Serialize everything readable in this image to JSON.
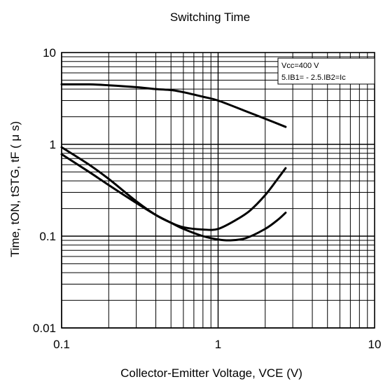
{
  "chart_data": {
    "type": "line",
    "title": "Switching Time",
    "xlabel": "Collector-Emitter Voltage, VCE (V)",
    "ylabel": "Time, tON, tSTG, tF ( μ s)",
    "x_scale": "log",
    "y_scale": "log",
    "xlim": [
      0.1,
      10
    ],
    "ylim": [
      0.01,
      10
    ],
    "x_ticks": [
      {
        "value": 0.1,
        "label": "0.1"
      },
      {
        "value": 1,
        "label": "1"
      },
      {
        "value": 10,
        "label": "10"
      }
    ],
    "y_ticks": [
      {
        "value": 0.01,
        "label": "0.01"
      },
      {
        "value": 0.1,
        "label": "0.1"
      },
      {
        "value": 1,
        "label": "1"
      },
      {
        "value": 10,
        "label": "10"
      }
    ],
    "grid": true,
    "annotations": [
      "Vcc=400 V",
      "5.IB1= - 2.5.IB2=Ic"
    ],
    "series": [
      {
        "x": [
          0.1,
          0.15,
          0.2,
          0.3,
          0.4,
          0.5,
          0.6,
          0.8,
          1.0,
          1.5,
          2.0,
          2.7
        ],
        "y": [
          4.5,
          4.5,
          4.4,
          4.2,
          4.0,
          3.9,
          3.7,
          3.3,
          3.0,
          2.3,
          1.9,
          1.55
        ]
      },
      {
        "x": [
          0.1,
          0.15,
          0.2,
          0.3,
          0.4,
          0.5,
          0.6,
          0.8,
          1.0,
          1.3,
          1.6,
          2.0,
          2.4,
          2.7
        ],
        "y": [
          0.93,
          0.6,
          0.42,
          0.24,
          0.17,
          0.14,
          0.125,
          0.118,
          0.12,
          0.15,
          0.19,
          0.28,
          0.42,
          0.55
        ]
      },
      {
        "x": [
          0.1,
          0.15,
          0.2,
          0.3,
          0.4,
          0.5,
          0.6,
          0.8,
          1.0,
          1.2,
          1.5,
          2.0,
          2.4,
          2.7
        ],
        "y": [
          0.78,
          0.5,
          0.36,
          0.23,
          0.17,
          0.14,
          0.12,
          0.1,
          0.092,
          0.09,
          0.095,
          0.12,
          0.15,
          0.18
        ]
      }
    ]
  }
}
